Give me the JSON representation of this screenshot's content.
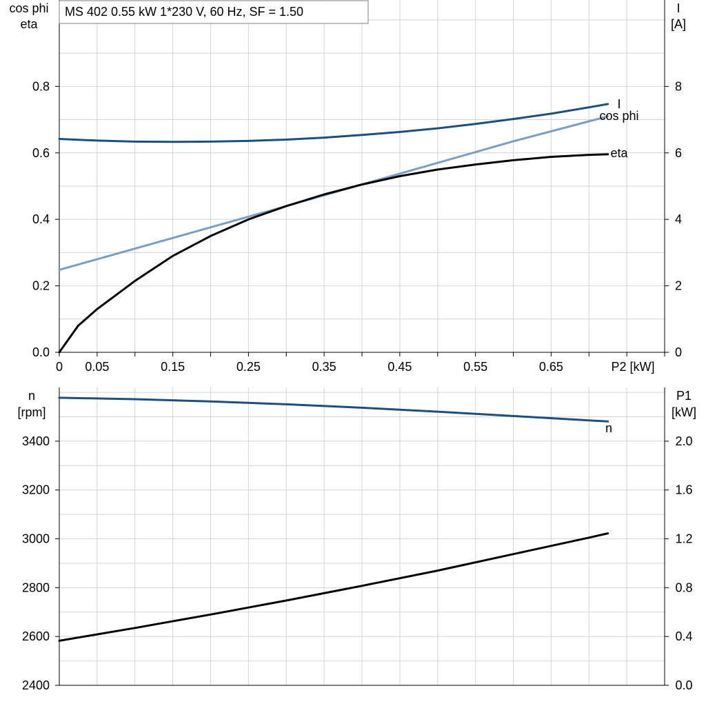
{
  "header": {
    "title": "MS 402   0.55 kW   1*230 V, 60 Hz, SF = 1.50"
  },
  "colors": {
    "I": "#1c4e80",
    "cos_phi": "#7b9fc2",
    "eta": "#000000",
    "n": "#1c4e80",
    "P1": "#000000"
  },
  "chart_data": [
    {
      "type": "line",
      "title": "MS 402   0.55 kW   1*230 V, 60 Hz, SF = 1.50",
      "xlabel": "P2 [kW]",
      "xlim": [
        0,
        0.8
      ],
      "x_ticks": [
        0,
        0.05,
        0.15,
        0.25,
        0.35,
        0.45,
        0.55,
        0.65
      ],
      "x_tick_labels": [
        "0",
        "0.05",
        "0.15",
        "0.25",
        "0.35",
        "0.45",
        "0.55",
        "0.65"
      ],
      "ylabel_left": [
        "cos phi",
        "eta"
      ],
      "ylim_left": [
        0,
        1.06
      ],
      "y_ticks_left": [
        "0.0",
        "0.2",
        "0.4",
        "0.6",
        "0.8"
      ],
      "ylabel_right": [
        "I",
        "[A]"
      ],
      "ylim_right": [
        0,
        10.6
      ],
      "y_ticks_right": [
        "0",
        "2",
        "4",
        "6",
        "8"
      ],
      "grid": true,
      "series": [
        {
          "name": "I",
          "axis": "right",
          "color": "#1c4e80",
          "x": [
            0,
            0.05,
            0.1,
            0.15,
            0.2,
            0.25,
            0.3,
            0.35,
            0.4,
            0.45,
            0.5,
            0.55,
            0.6,
            0.65,
            0.7,
            0.725
          ],
          "y": [
            6.42,
            6.37,
            6.34,
            6.33,
            6.34,
            6.36,
            6.4,
            6.46,
            6.54,
            6.63,
            6.74,
            6.87,
            7.02,
            7.18,
            7.37,
            7.47
          ]
        },
        {
          "name": "cos phi",
          "axis": "left",
          "color": "#7b9fc2",
          "x": [
            0,
            0.1,
            0.2,
            0.3,
            0.4,
            0.5,
            0.6,
            0.7,
            0.725
          ],
          "y": [
            0.248,
            0.312,
            0.376,
            0.44,
            0.505,
            0.57,
            0.635,
            0.695,
            0.71
          ]
        },
        {
          "name": "eta",
          "axis": "left",
          "color": "#000000",
          "x": [
            0,
            0.025,
            0.05,
            0.1,
            0.15,
            0.2,
            0.25,
            0.3,
            0.35,
            0.4,
            0.45,
            0.5,
            0.55,
            0.6,
            0.65,
            0.7,
            0.725
          ],
          "y": [
            0,
            0.08,
            0.13,
            0.215,
            0.29,
            0.35,
            0.4,
            0.44,
            0.475,
            0.505,
            0.53,
            0.55,
            0.565,
            0.578,
            0.588,
            0.594,
            0.596
          ]
        }
      ]
    },
    {
      "type": "line",
      "xlim": [
        0,
        0.8
      ],
      "ylabel_left": [
        "n",
        "[rpm]"
      ],
      "ylim_left": [
        2400,
        3620
      ],
      "y_ticks_left": [
        "2400",
        "2600",
        "2800",
        "3000",
        "3200",
        "3400"
      ],
      "ylabel_right": [
        "P1",
        "[kW]"
      ],
      "ylim_right": [
        0,
        2.44
      ],
      "y_ticks_right": [
        "0.0",
        "0.4",
        "0.8",
        "1.2",
        "1.6",
        "2.0"
      ],
      "grid": true,
      "series": [
        {
          "name": "n",
          "axis": "left",
          "color": "#1c4e80",
          "x": [
            0,
            0.1,
            0.2,
            0.3,
            0.4,
            0.5,
            0.6,
            0.7,
            0.725
          ],
          "y": [
            3578,
            3572,
            3563,
            3551,
            3537,
            3521,
            3503,
            3485,
            3481
          ]
        },
        {
          "name": "",
          "axis": "right",
          "color": "#000000",
          "x": [
            0,
            0.1,
            0.2,
            0.3,
            0.4,
            0.5,
            0.6,
            0.7,
            0.725
          ],
          "y": [
            0.365,
            0.47,
            0.58,
            0.695,
            0.815,
            0.94,
            1.075,
            1.21,
            1.245
          ]
        }
      ]
    }
  ]
}
